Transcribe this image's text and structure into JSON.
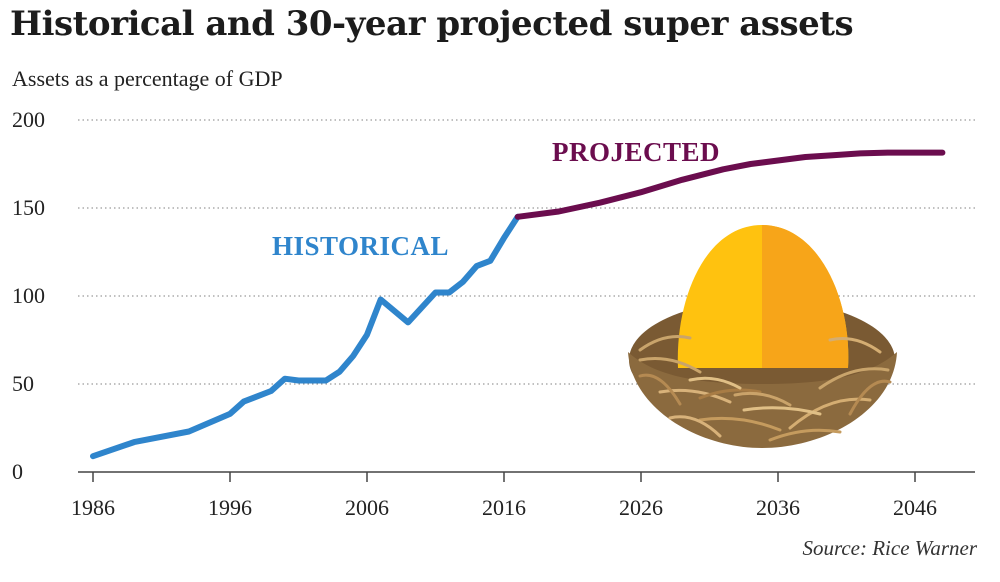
{
  "chart_data": {
    "type": "line",
    "title": "Historical and 30-year projected super assets",
    "subtitle": "Assets as a percentage of GDP",
    "source": "Source: Rice Warner",
    "xlabel": "",
    "ylabel": "Assets as a percentage of GDP",
    "xlim": [
      1986,
      2048
    ],
    "ylim": [
      0,
      200
    ],
    "x_ticks": [
      1986,
      1996,
      2006,
      2016,
      2026,
      2036,
      2046
    ],
    "y_ticks": [
      0,
      50,
      100,
      150,
      200
    ],
    "grid": "horizontal-dotted",
    "series": [
      {
        "name": "HISTORICAL",
        "color": "#2f85cc",
        "x": [
          1986,
          1989,
          1993,
          1996,
          1997,
          1999,
          2000,
          2001,
          2002,
          2003,
          2004,
          2005,
          2006,
          2007,
          2009,
          2011,
          2012,
          2013,
          2014,
          2015,
          2016,
          2017
        ],
        "y": [
          9,
          17,
          23,
          33,
          40,
          46,
          53,
          52,
          52,
          52,
          57,
          66,
          78,
          98,
          85,
          102,
          102,
          108,
          117,
          120,
          133,
          145
        ]
      },
      {
        "name": "PROJECTED",
        "color": "#6b0d4e",
        "x": [
          2017,
          2020,
          2023,
          2026,
          2029,
          2032,
          2034,
          2036,
          2038,
          2040,
          2042,
          2044,
          2046,
          2048
        ],
        "y": [
          145,
          148,
          153,
          159,
          166,
          172,
          175,
          177,
          179,
          180,
          181,
          181.5,
          181.5,
          181.5
        ]
      }
    ]
  },
  "colors": {
    "historical": "#2f85cc",
    "projected": "#6b0d4e",
    "grid": "#9a9a9a",
    "axis": "#444444",
    "egg_light": "#ffc20f",
    "egg_dark": "#f7a519",
    "nest": "#8b6a3e"
  }
}
